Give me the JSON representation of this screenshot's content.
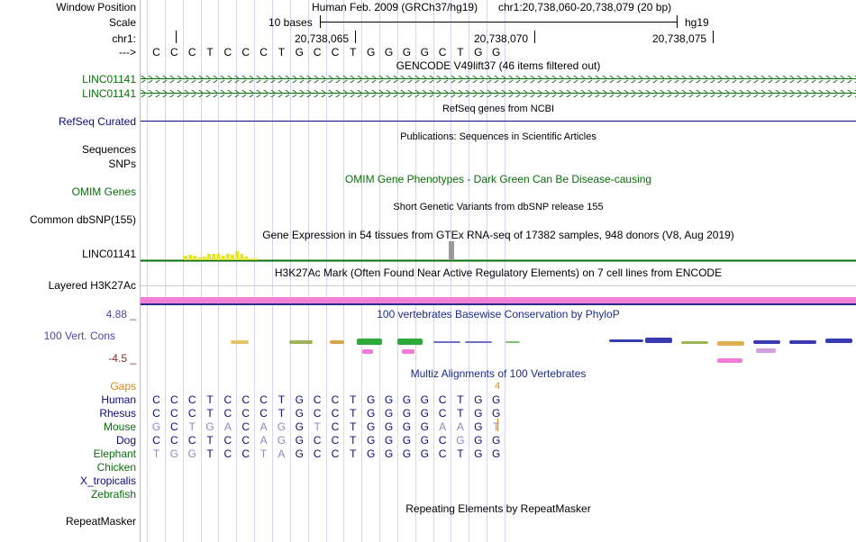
{
  "labels": {
    "window_position": "Window Position",
    "scale": "Scale",
    "chr": "chr1:",
    "arrow": "--->",
    "linc1": "LINC01141",
    "linc2": "LINC01141",
    "refseq": "RefSeq Curated",
    "sequences": "Sequences",
    "snps": "SNPs",
    "omim": "OMIM Genes",
    "dbsnp": "Common dbSNP(155)",
    "gtex": "LINC01141",
    "h3k27ac": "Layered H3K27Ac",
    "cons_max": "4.88 _",
    "cons": "100 Vert. Cons",
    "cons_min": "-4.5 _",
    "gaps": "Gaps",
    "species": [
      "Human",
      "Rhesus",
      "Mouse",
      "Dog",
      "Elephant",
      "Chicken",
      "X_tropicalis",
      "Zebrafish"
    ],
    "repeatmasker": "RepeatMasker"
  },
  "header": {
    "assembly": "Human Feb. 2009 (GRCh37/hg19)",
    "position": "chr1:20,738,060-20,738,079 (20 bp)",
    "scale_text": "10 bases",
    "db": "hg19",
    "coords": [
      "20,738,065",
      "20,738,070",
      "20,738,075"
    ]
  },
  "sequence": [
    "C",
    "C",
    "C",
    "T",
    "C",
    "C",
    "C",
    "T",
    "G",
    "C",
    "C",
    "T",
    "G",
    "G",
    "G",
    "G",
    "C",
    "T",
    "G",
    "G"
  ],
  "tracks": {
    "gencode_title": "GENCODE V49lift37 (46 items filtered out)",
    "refseq_title": "RefSeq genes from NCBI",
    "publications_title": "Publications: Sequences in Scientific Articles",
    "omim_title": "OMIM Gene Phenotypes - Dark Green Can Be Disease-causing",
    "dbsnp_title": "Short Genetic Variants from dbSNP release 155",
    "gtex_title": "Gene Expression in 54 tissues from GTEx RNA-seq of 17382 samples, 948 donors (V8, Aug 2019)",
    "h3k27ac_title": "H3K27Ac Mark (Often Found Near Active Regulatory Elements) on 7 cell lines from ENCODE",
    "phylop_title": "100 vertebrates Basewise Conservation by PhyloP",
    "multiz_title": "Multiz Alignments of 100 Vertebrates",
    "gap_count": "4",
    "repeat_title": "Repeating Elements by RepeatMasker"
  },
  "alignment": {
    "Human": [
      "C",
      "C",
      "C",
      "T",
      "C",
      "C",
      "C",
      "T",
      "G",
      "C",
      "C",
      "T",
      "G",
      "G",
      "G",
      "G",
      "C",
      "T",
      "G",
      "G"
    ],
    "Rhesus": [
      "C",
      "C",
      "C",
      "T",
      "C",
      "C",
      "C",
      "T",
      "G",
      "C",
      "C",
      "T",
      "G",
      "G",
      "G",
      "G",
      "C",
      "T",
      "G",
      "G"
    ],
    "Mouse": [
      "G",
      "C",
      "T",
      "G",
      "A",
      "C",
      "A",
      "G",
      "G",
      "T",
      "C",
      "T",
      "G",
      "G",
      "G",
      "G",
      "A",
      "A",
      "G",
      "T"
    ],
    "Dog": [
      "C",
      "C",
      "C",
      "T",
      "C",
      "C",
      "A",
      "G",
      "G",
      "C",
      "C",
      "T",
      "G",
      "G",
      "G",
      "G",
      "C",
      "G",
      "G",
      "G"
    ],
    "Elephant": [
      "T",
      "G",
      "G",
      "T",
      "C",
      "C",
      "T",
      "A",
      "G",
      "C",
      "C",
      "T",
      "G",
      "G",
      "G",
      "G",
      "C",
      "T",
      "G",
      "G"
    ]
  },
  "colors": {
    "gene_green": "#0a6e0a",
    "refseq_blue": "#0c0c78",
    "track_blue": "#1c2c88",
    "cons_label": "#4a4a9a",
    "gaps_orange": "#d98a12",
    "h3k27ac_pink": "#f37fd6",
    "h3k27ac_blue": "#2a2a8a",
    "gtex_yellow": "#e6e627",
    "match": "#0c0c78",
    "mismatch": "#8a8ac0"
  }
}
